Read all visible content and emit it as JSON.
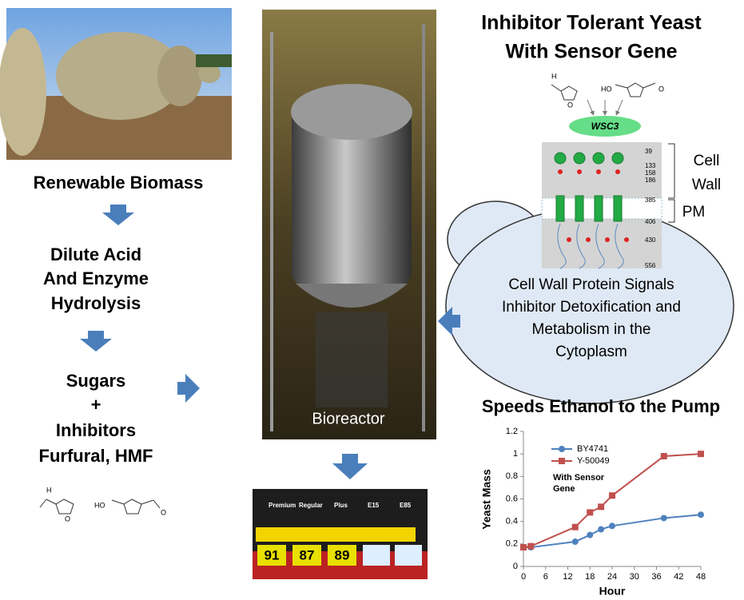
{
  "left_flow": {
    "steps": [
      "Renewable Biomass",
      "Dilute Acid",
      "And Enzyme",
      "Hydrolysis",
      "Sugars",
      "+",
      "Inhibitors",
      "Furfural, HMF"
    ],
    "molecule_labels": [
      "H",
      "O",
      "HO",
      "O"
    ]
  },
  "bioreactor": {
    "label": "Bioreactor"
  },
  "pump": {
    "labels": [
      "Premium",
      "Regular",
      "Plus",
      "E15",
      "E85"
    ],
    "octanes": [
      "91",
      "87",
      "89"
    ]
  },
  "right_panel": {
    "title": [
      "Inhibitor Tolerant Yeast",
      "With Sensor Gene"
    ],
    "molecule_labels": [
      "H",
      "O",
      "HO",
      "O"
    ],
    "sensor": "WSC3",
    "residues": [
      "39",
      "133",
      "158",
      "186",
      "385",
      "406",
      "430",
      "556"
    ],
    "regions": [
      "Cell",
      "Wall",
      "PM"
    ],
    "cell_text": [
      "Cell Wall Protein Signals",
      "Inhibitor Detoxification and",
      "Metabolism in the",
      "Cytoplasm"
    ]
  },
  "chart_data": {
    "type": "line",
    "title": "Speeds Ethanol to the Pump",
    "x_label": "Hour",
    "y_label": "Yeast Mass",
    "x": [
      0,
      2,
      14,
      18,
      21,
      24,
      38,
      48
    ],
    "series": [
      {
        "name": "BY4741",
        "color": "#4f81bd",
        "marker": "circle",
        "values": [
          0.17,
          0.17,
          0.22,
          0.28,
          0.33,
          0.36,
          0.43,
          0.46
        ]
      },
      {
        "name": "Y-50049",
        "color": "#c0504d",
        "marker": "square",
        "values": [
          0.17,
          0.18,
          0.35,
          0.48,
          0.53,
          0.63,
          0.98,
          1.0
        ]
      }
    ],
    "annotation": [
      "With Sensor",
      "Gene"
    ],
    "xlim": [
      0,
      48
    ],
    "xticks": [
      0,
      6,
      12,
      18,
      24,
      30,
      36,
      42,
      48
    ],
    "ylim": [
      0,
      1.2
    ],
    "yticks": [
      0,
      0.2,
      0.4,
      0.6,
      0.8,
      1,
      1.2
    ]
  }
}
